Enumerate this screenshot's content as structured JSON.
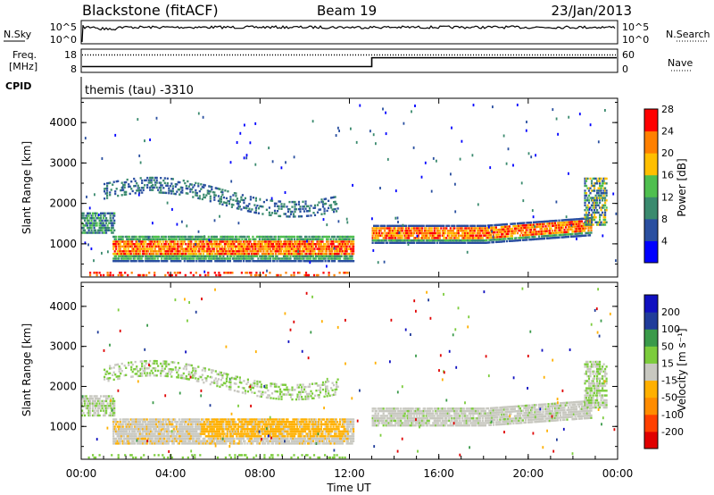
{
  "header": {
    "station": "Blackstone (fitACF)",
    "beam": "Beam 19",
    "date": "23/Jan/2013"
  },
  "noise_panel": {
    "left_label": "N.Sky",
    "right_label": "N.Search",
    "left_ticks": [
      "10^5",
      "10^0"
    ],
    "right_ticks": [
      "10^5",
      "10^0"
    ]
  },
  "freq_panel": {
    "left_label_1": "Freq.",
    "left_label_2": "[MHz]",
    "right_label": "Nave",
    "left_ticks": [
      "18",
      "8"
    ],
    "right_ticks": [
      "60",
      "0"
    ],
    "freq_step_time_hours": 13.0,
    "freq_before_mhz": 10.5,
    "freq_after_mhz": 14.3,
    "nave_value": 45
  },
  "cpid": {
    "label": "CPID",
    "value": "themis (tau) -3310"
  },
  "colors": {
    "power": [
      "#0000ff",
      "#2a4fa0",
      "#3a8a6e",
      "#4fbf4f",
      "#ffbf00",
      "#ff8000",
      "#ff0000"
    ],
    "velocity": [
      "#e00000",
      "#ff4000",
      "#ff8c00",
      "#ffb000",
      "#c8c8c0",
      "#7ccc3c",
      "#3a9a4a",
      "#203c9a",
      "#1010c0"
    ]
  },
  "chart_data": [
    {
      "type": "heatmap",
      "name": "power",
      "ylabel": "Slant Range [km]",
      "ylim": [
        180,
        4600
      ],
      "yticks": [
        "1000",
        "2000",
        "3000",
        "4000"
      ],
      "xlim": [
        0,
        24
      ],
      "colorbar_label": "Power [dB]",
      "colorbar_ticks": [
        "4",
        "8",
        "12",
        "16",
        "20",
        "24",
        "28"
      ]
    },
    {
      "type": "heatmap",
      "name": "velocity",
      "ylabel": "Slant Range [km]",
      "ylim": [
        180,
        4600
      ],
      "yticks": [
        "1000",
        "2000",
        "3000",
        "4000"
      ],
      "xlim": [
        0,
        24
      ],
      "xticks": [
        "00:00",
        "04:00",
        "08:00",
        "12:00",
        "16:00",
        "20:00",
        "00:00"
      ],
      "xlabel": "Time UT",
      "colorbar_label": "Velocity [m s⁻¹]",
      "colorbar_ticks": [
        "-200",
        "-100",
        "-50",
        "-15",
        "15",
        "50",
        "100",
        "200"
      ]
    }
  ]
}
